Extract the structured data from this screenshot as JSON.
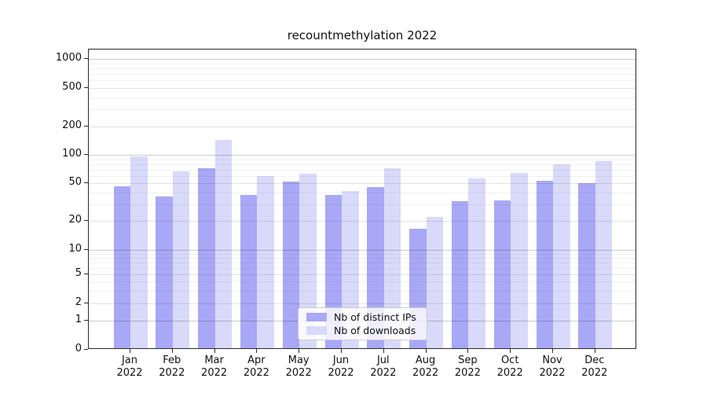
{
  "title": "recountmethylation 2022",
  "chart_data": {
    "type": "bar",
    "title": "recountmethylation 2022",
    "categories": [
      "Jan 2022",
      "Feb 2022",
      "Mar 2022",
      "Apr 2022",
      "May 2022",
      "Jun 2022",
      "Jul 2022",
      "Aug 2022",
      "Sep 2022",
      "Oct 2022",
      "Nov 2022",
      "Dec 2022"
    ],
    "series": [
      {
        "name": "Nb of distinct IPs",
        "color": "#a8a8f6",
        "values": [
          45,
          35,
          70,
          36,
          50,
          36,
          44,
          16,
          31,
          32,
          51,
          48
        ]
      },
      {
        "name": "Nb of downloads",
        "color": "#d9d9fa",
        "values": [
          93,
          65,
          140,
          57,
          61,
          40,
          70,
          21,
          54,
          62,
          77,
          83
        ]
      }
    ],
    "xlabel": "",
    "ylabel": "",
    "yscale": "quasi-log (symlog-like, linear near 0)",
    "yticks": [
      0,
      1,
      2,
      5,
      10,
      20,
      50,
      100,
      200,
      500,
      1000
    ],
    "minor_gridline_values": [
      3,
      4,
      6,
      7,
      8,
      9,
      30,
      40,
      60,
      70,
      80,
      90,
      300,
      400,
      600,
      700,
      800,
      900
    ],
    "ylim": [
      0,
      1400
    ],
    "grid": true,
    "grid_above_bars": true,
    "legend": {
      "entries": [
        "Nb of distinct IPs",
        "Nb of downloads"
      ],
      "position": "bottom-center inside plot"
    }
  },
  "colors": {
    "distinct_ips": "#a8a8f6",
    "downloads": "#d9d9fa",
    "major_grid": "rgba(0,0,0,0.20)",
    "labeled_grid": "rgba(0,0,0,0.11)",
    "minor_grid": "rgba(0,0,0,0.055)",
    "spine": "#2a2a2a",
    "background": "#ffffff"
  }
}
